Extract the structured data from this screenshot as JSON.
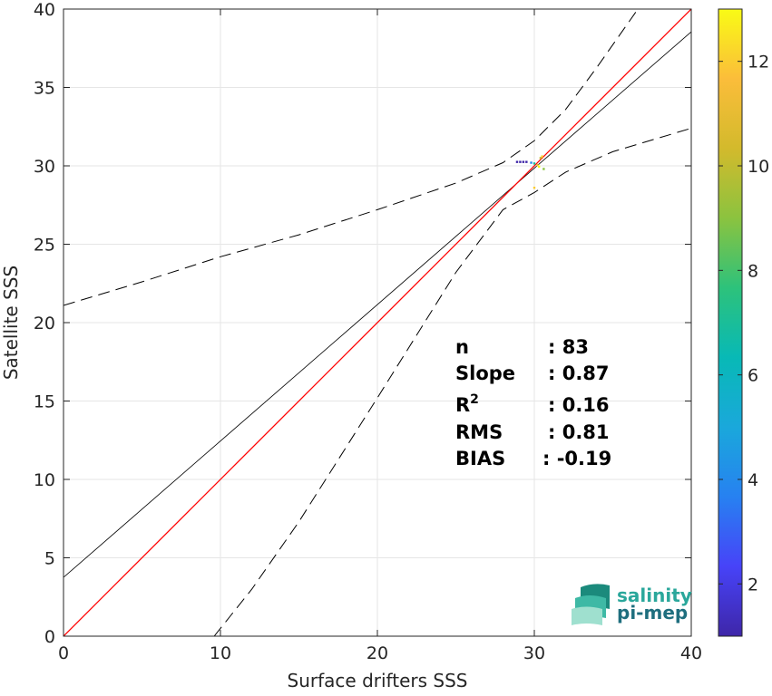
{
  "chart_data": {
    "type": "scatter",
    "xlabel": "Surface drifters SSS",
    "ylabel": "Satellite SSS",
    "xlim": [
      0,
      40
    ],
    "ylim": [
      0,
      40
    ],
    "xticks": [
      0,
      10,
      20,
      30,
      40
    ],
    "yticks": [
      0,
      5,
      10,
      15,
      20,
      25,
      30,
      35,
      40
    ],
    "grid": true,
    "points": [
      {
        "x": 28.9,
        "y": 30.25,
        "density": 1
      },
      {
        "x": 29.1,
        "y": 30.25,
        "density": 1
      },
      {
        "x": 29.3,
        "y": 30.25,
        "density": 1
      },
      {
        "x": 29.5,
        "y": 30.25,
        "density": 1
      },
      {
        "x": 29.8,
        "y": 30.2,
        "density": 4
      },
      {
        "x": 30.0,
        "y": 30.15,
        "density": 7
      },
      {
        "x": 30.2,
        "y": 30.05,
        "density": 11
      },
      {
        "x": 30.3,
        "y": 29.95,
        "density": 13
      },
      {
        "x": 30.4,
        "y": 30.5,
        "density": 10
      },
      {
        "x": 30.5,
        "y": 30.6,
        "density": 12
      },
      {
        "x": 30.6,
        "y": 29.8,
        "density": 9
      },
      {
        "x": 30.0,
        "y": 28.6,
        "density": 12
      }
    ],
    "identity_line": {
      "color": "#ff0000",
      "slope": 1,
      "intercept": 0
    },
    "fit_line": {
      "color": "#000000",
      "slope": 0.87,
      "intercept": 3.75
    },
    "confidence_bounds": {
      "upper": [
        [
          0,
          21.1
        ],
        [
          5,
          22.6
        ],
        [
          10,
          24.2
        ],
        [
          15,
          25.6
        ],
        [
          20,
          27.2
        ],
        [
          25,
          28.9
        ],
        [
          28,
          30.2
        ],
        [
          30,
          31.6
        ],
        [
          32,
          33.6
        ],
        [
          34,
          36.3
        ],
        [
          36.6,
          40
        ]
      ],
      "lower": [
        [
          9.6,
          0
        ],
        [
          12,
          3
        ],
        [
          15,
          7.3
        ],
        [
          20,
          15.2
        ],
        [
          25,
          23.2
        ],
        [
          28,
          27.2
        ],
        [
          30,
          28.3
        ],
        [
          32,
          29.6
        ],
        [
          35,
          30.9
        ],
        [
          40,
          32.4
        ]
      ]
    },
    "colorbar": {
      "min": 1,
      "max": 13,
      "ticks": [
        2,
        4,
        6,
        8,
        10,
        12
      ],
      "colormap": [
        "#3e26a8",
        "#4743f8",
        "#2781f1",
        "#1aa8db",
        "#08b9b6",
        "#2dc27b",
        "#8bc33f",
        "#d3ba2c",
        "#fbbd3a",
        "#f9fb15"
      ]
    },
    "stats": [
      {
        "label": "n",
        "value": ": 83"
      },
      {
        "label": "Slope",
        "value": ": 0.87"
      },
      {
        "label": "R",
        "sup": "2",
        "value": ": 0.16"
      },
      {
        "label": "RMS",
        "value": ": 0.81"
      },
      {
        "label": "BIAS",
        "value": ": -0.19"
      }
    ]
  },
  "logo": {
    "line1": "salinity",
    "line2": "pi-mep"
  }
}
